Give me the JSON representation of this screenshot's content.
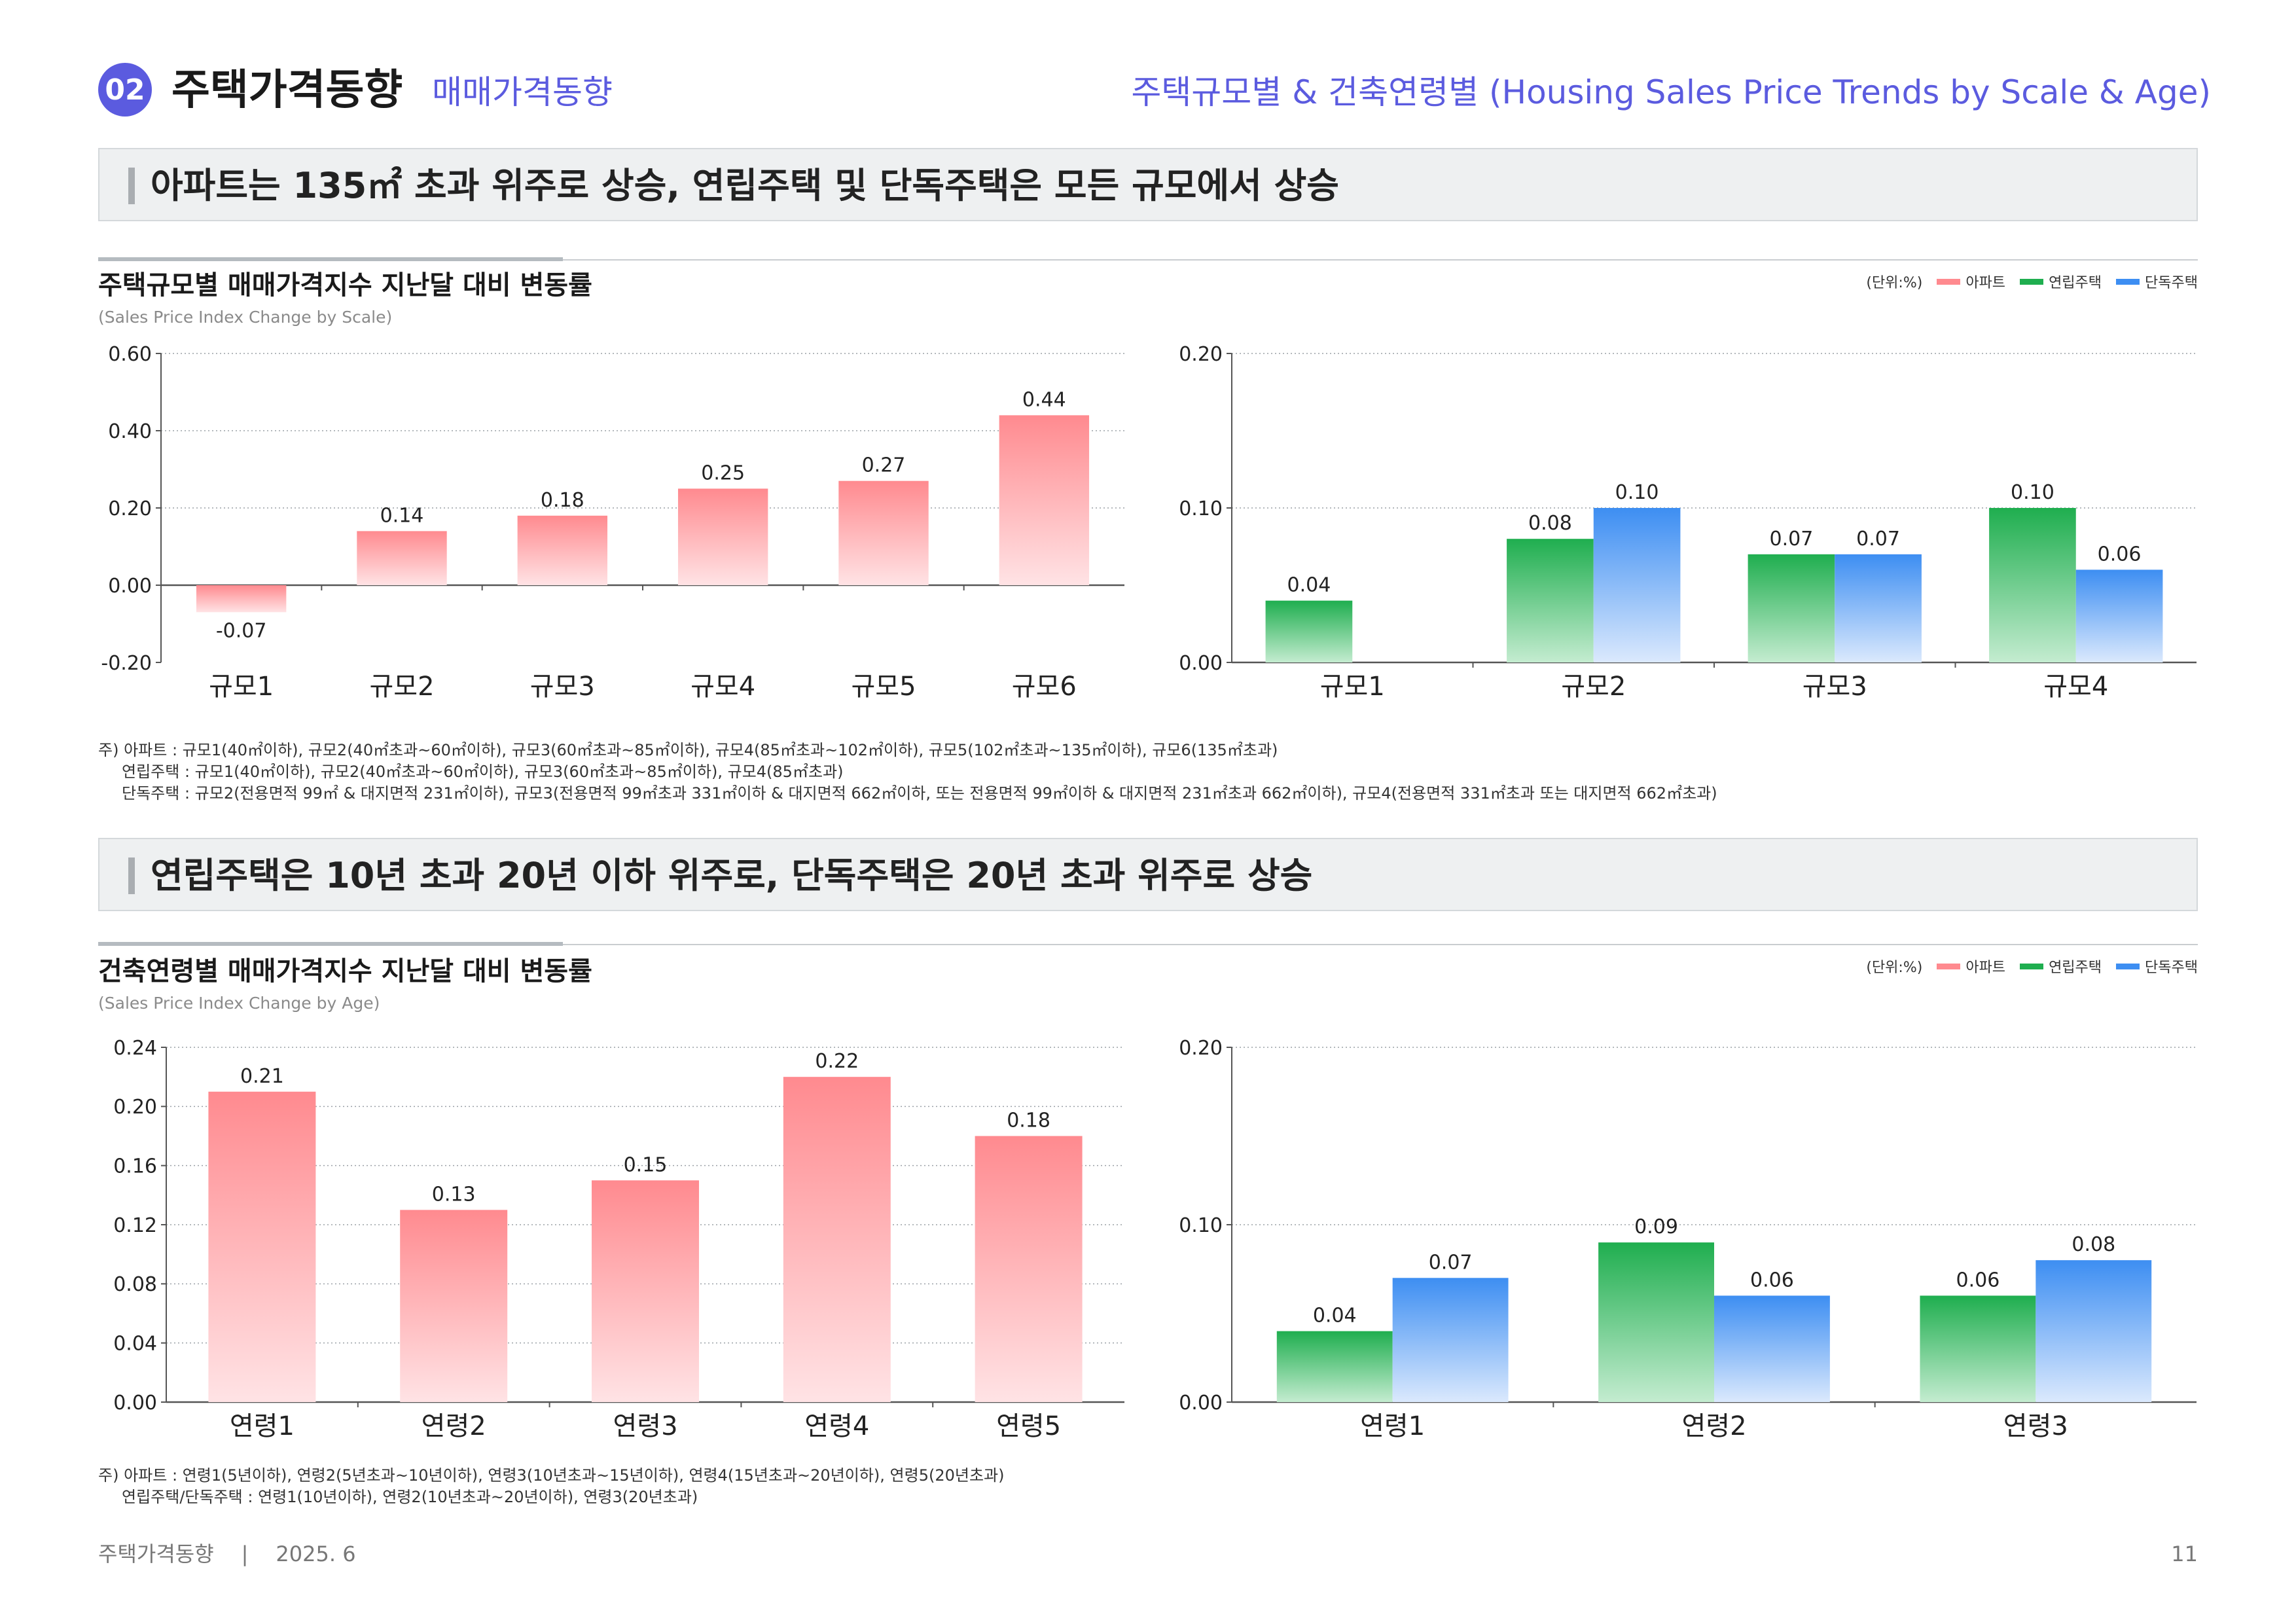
{
  "header": {
    "badge": "02",
    "title": "주택가격동향",
    "subtitle": "매매가격동향",
    "right_title": "주택규모별 & 건축연령별 (Housing Sales Price Trends by Scale & Age)"
  },
  "section1": {
    "headline": "아파트는  135㎡ 초과 위주로 상승, 연립주택 및 단독주택은 모든 규모에서 상승",
    "title": "주택규모별 매매가격지수 지난달 대비 변동률",
    "subtitle": "(Sales Price Index Change by Scale)",
    "legend": {
      "unit": "(단위:%)",
      "items": [
        "아파트",
        "연립주택",
        "단독주택"
      ]
    },
    "notes": [
      "주) 아파트 : 규모1(40㎡이하), 규모2(40㎡초과~60㎡이하), 규모3(60㎡초과~85㎡이하), 규모4(85㎡초과~102㎡이하), 규모5(102㎡초과~135㎡이하), 규모6(135㎡초과)",
      "연립주택 : 규모1(40㎡이하), 규모2(40㎡초과~60㎡이하), 규모3(60㎡초과~85㎡이하), 규모4(85㎡초과)",
      "단독주택 : 규모2(전용면적 99㎡ & 대지면적 231㎡이하), 규모3(전용면적 99㎡초과 331㎡이하 & 대지면적 662㎡이하, 또는 전용면적 99㎡이하 & 대지면적 231㎡초과 662㎡이하), 규모4(전용면적 331㎡초과 또는 대지면적 662㎡초과)"
    ]
  },
  "section2": {
    "headline": "연립주택은 10년 초과 20년 이하 위주로, 단독주택은 20년 초과 위주로 상승",
    "title": "건축연령별 매매가격지수 지난달 대비 변동률",
    "subtitle": "(Sales Price Index Change by Age)",
    "legend": {
      "unit": "(단위:%)",
      "items": [
        "아파트",
        "연립주택",
        "단독주택"
      ]
    },
    "notes": [
      "주) 아파트 : 연령1(5년이하), 연령2(5년초과~10년이하), 연령3(10년초과~15년이하), 연령4(15년초과~20년이하), 연령5(20년초과)",
      "연립주택/단독주택 : 연령1(10년이하), 연령2(10년초과~20년이하), 연령3(20년초과)"
    ]
  },
  "colors": {
    "accent": "#5b5bdf",
    "apartment_top": "#ff8a8f",
    "apartment_bottom": "#ffe3e5",
    "row_top": "#1fae4f",
    "row_bottom": "#c4ecd0",
    "detached_top": "#3d8ef2",
    "detached_bottom": "#dbe9fd"
  },
  "chart_data": [
    {
      "id": "scale-apartment",
      "type": "bar",
      "series_name": "아파트",
      "series_key": "apt",
      "categories": [
        "규모1",
        "규모2",
        "규모3",
        "규모4",
        "규모5",
        "규모6"
      ],
      "values": [
        -0.07,
        0.14,
        0.18,
        0.25,
        0.27,
        0.44
      ],
      "labels": [
        "-0.07",
        "0.14",
        "0.18",
        "0.25",
        "0.27",
        "0.44"
      ],
      "ylim": [
        -0.2,
        0.6
      ],
      "ticks": [
        -0.2,
        0.0,
        0.2,
        0.4,
        0.6
      ],
      "tick_labels": [
        "-0.20",
        "0.00",
        "0.20",
        "0.40",
        "0.60"
      ]
    },
    {
      "id": "scale-row-detached",
      "type": "bar",
      "categories": [
        "규모1",
        "규모2",
        "규모3",
        "규모4"
      ],
      "series": [
        {
          "name": "연립주택",
          "key": "row",
          "values": [
            0.04,
            0.08,
            0.07,
            0.1
          ],
          "labels": [
            "0.04",
            "0.08",
            "0.07",
            "0.10"
          ]
        },
        {
          "name": "단독주택",
          "key": "det",
          "values": [
            null,
            0.1,
            0.07,
            0.06
          ],
          "labels": [
            null,
            "0.10",
            "0.07",
            "0.06"
          ]
        }
      ],
      "ylim": [
        0,
        0.2
      ],
      "ticks": [
        0.0,
        0.1,
        0.2
      ],
      "tick_labels": [
        "0.00",
        "0.10",
        "0.20"
      ]
    },
    {
      "id": "age-apartment",
      "type": "bar",
      "series_name": "아파트",
      "series_key": "apt",
      "categories": [
        "연령1",
        "연령2",
        "연령3",
        "연령4",
        "연령5"
      ],
      "values": [
        0.21,
        0.13,
        0.15,
        0.22,
        0.18
      ],
      "labels": [
        "0.21",
        "0.13",
        "0.15",
        "0.22",
        "0.18"
      ],
      "ylim": [
        0,
        0.24
      ],
      "ticks": [
        0.0,
        0.04,
        0.08,
        0.12,
        0.16,
        0.2,
        0.24
      ],
      "tick_labels": [
        "0.00",
        "0.04",
        "0.08",
        "0.12",
        "0.16",
        "0.20",
        "0.24"
      ]
    },
    {
      "id": "age-row-detached",
      "type": "bar",
      "categories": [
        "연령1",
        "연령2",
        "연령3"
      ],
      "series": [
        {
          "name": "연립주택",
          "key": "row",
          "values": [
            0.04,
            0.09,
            0.06
          ],
          "labels": [
            "0.04",
            "0.09",
            "0.06"
          ]
        },
        {
          "name": "단독주택",
          "key": "det",
          "values": [
            0.07,
            0.06,
            0.08
          ],
          "labels": [
            "0.07",
            "0.06",
            "0.08"
          ]
        }
      ],
      "ylim": [
        0,
        0.2
      ],
      "ticks": [
        0.0,
        0.1,
        0.2
      ],
      "tick_labels": [
        "0.00",
        "0.10",
        "0.20"
      ]
    }
  ],
  "footer": {
    "publication": "주택가격동향",
    "separator": "|",
    "date": "2025. 6",
    "page": "11"
  }
}
